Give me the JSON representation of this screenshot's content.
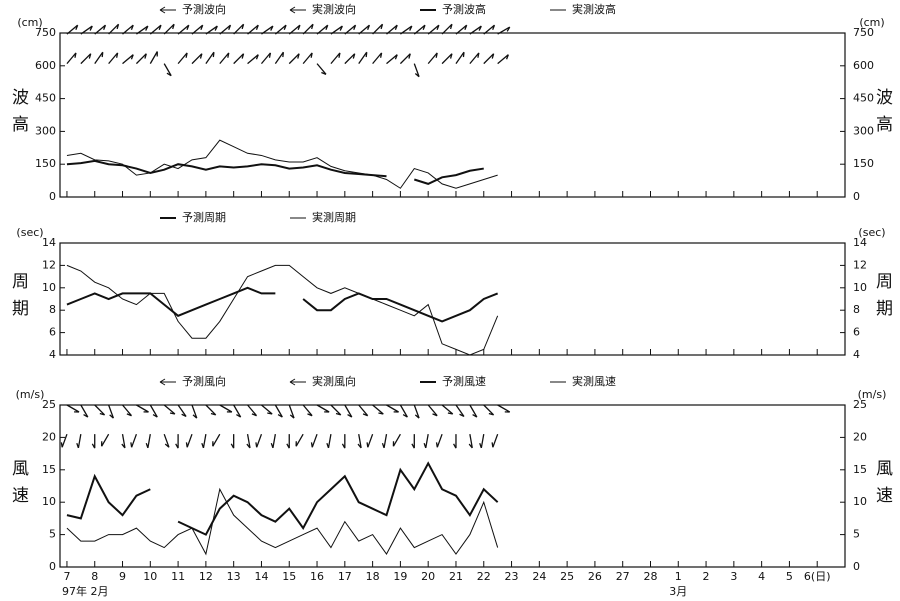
{
  "chart_data": [
    {
      "type": "line",
      "y_label": "波高",
      "unit": "(cm)",
      "xlim": [
        6.75,
        35
      ],
      "ylim": [
        0,
        750
      ],
      "yticks": [
        0,
        150,
        300,
        450,
        600,
        750
      ],
      "x": [
        7,
        7.5,
        8,
        8.5,
        9,
        9.5,
        10,
        10.5,
        11,
        11.5,
        12,
        12.5,
        13,
        13.5,
        14,
        14.5,
        15,
        15.5,
        16,
        16.5,
        17,
        17.5,
        18,
        18.5,
        19,
        19.5,
        20,
        20.5,
        21,
        21.5,
        22,
        22.5
      ],
      "series": [
        {
          "name": "予測波向",
          "kind": "arrow",
          "level": 745,
          "color": "#111",
          "values": [
            50,
            55,
            50,
            45,
            50,
            55,
            50,
            45,
            50,
            50,
            55,
            50,
            45,
            50,
            55,
            50,
            50,
            45,
            50,
            55,
            50,
            50,
            45,
            50,
            55,
            50,
            50,
            45,
            50,
            55,
            50,
            60
          ]
        },
        {
          "name": "実測波向",
          "kind": "arrow",
          "level": 610,
          "color": "#111",
          "values": [
            40,
            45,
            35,
            40,
            50,
            45,
            30,
            150,
            40,
            45,
            35,
            40,
            45,
            50,
            40,
            35,
            45,
            40,
            140,
            40,
            45,
            35,
            40,
            50,
            45,
            160,
            40,
            45,
            35,
            40,
            45,
            50
          ]
        },
        {
          "name": "予測波高",
          "kind": "line",
          "width": 2,
          "color": "#111",
          "values": [
            150,
            155,
            165,
            150,
            145,
            130,
            110,
            125,
            150,
            140,
            125,
            140,
            135,
            140,
            150,
            145,
            130,
            135,
            145,
            125,
            110,
            105,
            100,
            95,
            null,
            80,
            60,
            90,
            100,
            120,
            130,
            null
          ]
        },
        {
          "name": "実測波高",
          "kind": "line",
          "width": 1,
          "color": "#111",
          "values": [
            190,
            200,
            170,
            165,
            150,
            100,
            110,
            150,
            130,
            170,
            180,
            260,
            230,
            200,
            190,
            170,
            160,
            160,
            180,
            140,
            120,
            110,
            100,
            80,
            40,
            130,
            110,
            60,
            40,
            60,
            80,
            100
          ]
        }
      ]
    },
    {
      "type": "line",
      "y_label": "周期",
      "unit": "(sec)",
      "xlim": [
        6.75,
        35
      ],
      "ylim": [
        4,
        14
      ],
      "yticks": [
        4,
        6,
        8,
        10,
        12,
        14
      ],
      "x": [
        7,
        7.5,
        8,
        8.5,
        9,
        9.5,
        10,
        10.5,
        11,
        11.5,
        12,
        12.5,
        13,
        13.5,
        14,
        14.5,
        15,
        15.5,
        16,
        16.5,
        17,
        17.5,
        18,
        18.5,
        19,
        19.5,
        20,
        20.5,
        21,
        21.5,
        22,
        22.5
      ],
      "series": [
        {
          "name": "予測周期",
          "kind": "line",
          "width": 2,
          "color": "#111",
          "values": [
            8.5,
            9,
            9.5,
            9,
            9.5,
            9.5,
            9.5,
            8.5,
            7.5,
            8,
            8.5,
            9,
            9.5,
            10,
            9.5,
            9.5,
            null,
            9,
            8,
            8,
            9,
            9.5,
            9,
            9,
            8.5,
            8,
            7.5,
            7,
            7.5,
            8,
            9,
            9.5
          ]
        },
        {
          "name": "実測周期",
          "kind": "line",
          "width": 1,
          "color": "#111",
          "values": [
            12,
            11.5,
            10.5,
            10,
            9,
            8.5,
            9.5,
            9.5,
            7,
            5.5,
            5.5,
            7,
            9,
            11,
            11.5,
            12,
            12,
            11,
            10,
            9.5,
            10,
            9.5,
            9,
            8.5,
            8,
            7.5,
            8.5,
            5,
            4.5,
            4,
            4.5,
            7.5
          ]
        }
      ]
    },
    {
      "type": "line",
      "y_label": "風速",
      "unit": "(m/s)",
      "xlim": [
        6.75,
        35
      ],
      "ylim": [
        0,
        25
      ],
      "yticks": [
        0,
        5,
        10,
        15,
        20,
        25
      ],
      "x_label": "97年 2月",
      "x_label2": "3月",
      "xticks": [
        7,
        8,
        9,
        10,
        11,
        12,
        13,
        14,
        15,
        16,
        17,
        18,
        19,
        20,
        21,
        22,
        23,
        24,
        25,
        26,
        27,
        28,
        {
          "value": 29,
          "label": "1"
        },
        {
          "value": 30,
          "label": "2"
        },
        {
          "value": 31,
          "label": "3"
        },
        {
          "value": 32,
          "label": "4"
        },
        {
          "value": 33,
          "label": "5"
        },
        {
          "value": 34,
          "label": "6(日)"
        }
      ],
      "x": [
        7,
        7.5,
        8,
        8.5,
        9,
        9.5,
        10,
        10.5,
        11,
        11.5,
        12,
        12.5,
        13,
        13.5,
        14,
        14.5,
        15,
        15.5,
        16,
        16.5,
        17,
        17.5,
        18,
        18.5,
        19,
        19.5,
        20,
        20.5,
        21,
        21.5,
        22,
        22.5
      ],
      "series": [
        {
          "name": "予測風向",
          "kind": "arrow",
          "level": 25,
          "color": "#111",
          "values": [
            120,
            150,
            135,
            160,
            140,
            120,
            150,
            130,
            145,
            160,
            135,
            120,
            150,
            140,
            130,
            150,
            160,
            140,
            120,
            135,
            150,
            140,
            130,
            120,
            150,
            160,
            140,
            130,
            145,
            150,
            135,
            120
          ]
        },
        {
          "name": "実測風向",
          "kind": "arrow",
          "level": 20.5,
          "color": "#111",
          "values": [
            200,
            190,
            180,
            210,
            170,
            200,
            190,
            160,
            180,
            200,
            190,
            210,
            180,
            170,
            200,
            190,
            180,
            210,
            200,
            190,
            180,
            170,
            200,
            190,
            210,
            180,
            190,
            200,
            180,
            170,
            190,
            200
          ]
        },
        {
          "name": "予測風速",
          "kind": "line",
          "width": 2,
          "color": "#111",
          "values": [
            8,
            7.5,
            14,
            10,
            8,
            11,
            12,
            null,
            7,
            6,
            5,
            9,
            11,
            10,
            8,
            7,
            9,
            6,
            10,
            12,
            14,
            10,
            9,
            8,
            15,
            12,
            16,
            12,
            11,
            8,
            12,
            10
          ]
        },
        {
          "name": "実測風速",
          "kind": "line",
          "width": 1,
          "color": "#111",
          "values": [
            6,
            4,
            4,
            5,
            5,
            6,
            4,
            3,
            5,
            6,
            2,
            12,
            8,
            6,
            4,
            3,
            4,
            5,
            6,
            3,
            7,
            4,
            5,
            2,
            6,
            3,
            4,
            5,
            2,
            5,
            10,
            3
          ]
        }
      ]
    }
  ]
}
